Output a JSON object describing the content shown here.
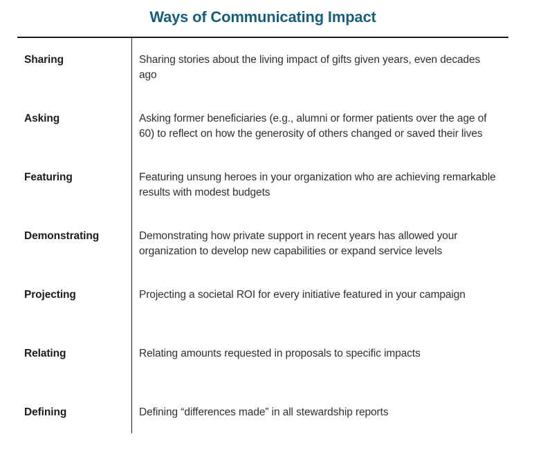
{
  "title": "Ways of Communicating Impact",
  "colors": {
    "title_accent": "#175E7D",
    "body_text": "#2e2e2e",
    "label_text": "#1b1b1b",
    "rule_line": "#1a1a1a",
    "background": "#ffffff"
  },
  "table": {
    "rows": [
      {
        "label": "Sharing",
        "description": "Sharing stories about the living impact of gifts given years, even decades ago"
      },
      {
        "label": "Asking",
        "description": "Asking former beneficiaries (e.g., alumni or former patients over the age of 60) to reflect on how the generosity of others changed or saved their lives"
      },
      {
        "label": "Featuring",
        "description": "Featuring unsung heroes in your organization who are achieving remarkable results with modest budgets"
      },
      {
        "label": "Demonstrating",
        "description": "Demonstrating how private support in recent years has allowed your organization to develop new capabilities or expand service levels"
      },
      {
        "label": "Projecting",
        "description": "Projecting a societal ROI for every initiative featured in your campaign"
      },
      {
        "label": "Relating",
        "description": "Relating amounts requested in proposals to specific impacts"
      },
      {
        "label": "Defining",
        "description": "Defining “differences made” in all stewardship reports"
      }
    ]
  }
}
